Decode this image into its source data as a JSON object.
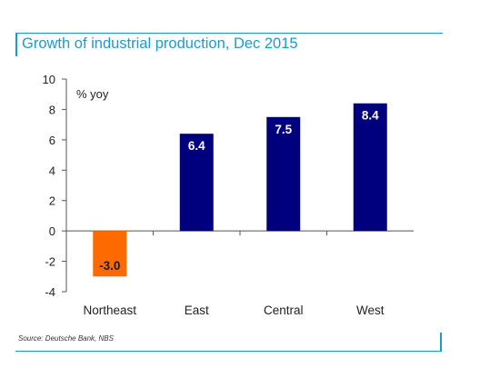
{
  "header": {
    "title": "Growth of industrial production, Dec 2015"
  },
  "footer": {
    "source": "Source: Deutsche Bank, NBS"
  },
  "colors": {
    "accent": "#1a9ccf",
    "bar_default": "#00007f",
    "bar_negative": "#ff6a00"
  },
  "chart_data": {
    "type": "bar",
    "title": "Growth of industrial production, Dec 2015",
    "ylabel": "% yoy",
    "xlabel": "",
    "categories": [
      "Northeast",
      "East",
      "Central",
      "West"
    ],
    "values": [
      -3.0,
      6.4,
      7.5,
      8.4
    ],
    "value_labels": [
      "-3.0",
      "6.4",
      "7.5",
      "8.4"
    ],
    "ylim": [
      -4,
      10
    ],
    "yticks": [
      10,
      8,
      6,
      4,
      2,
      0,
      -2,
      -4
    ],
    "grid": false,
    "legend": "none"
  }
}
